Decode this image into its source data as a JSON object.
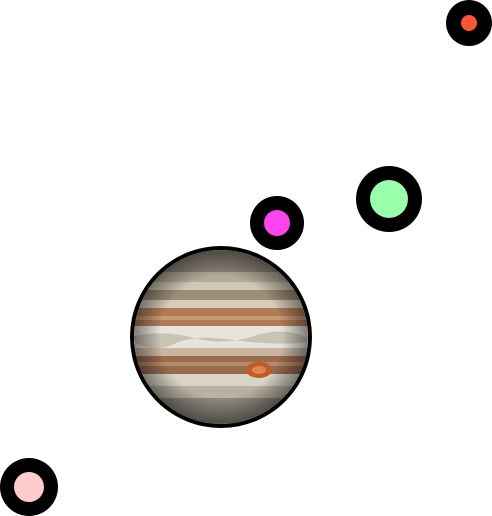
{
  "scene": {
    "background": "#ffffff",
    "ring_color": "#000000",
    "objects": [
      {
        "id": "orb-red",
        "kind": "small-orb",
        "color": "#ff5533"
      },
      {
        "id": "orb-green",
        "kind": "orb",
        "color": "#99ffaa"
      },
      {
        "id": "orb-magenta",
        "kind": "orb",
        "color": "#ff44ee"
      },
      {
        "id": "orb-pink",
        "kind": "orb",
        "color": "#ffcccc"
      },
      {
        "id": "planet",
        "kind": "jupiter",
        "icon": "jupiter-planet-icon"
      }
    ]
  }
}
